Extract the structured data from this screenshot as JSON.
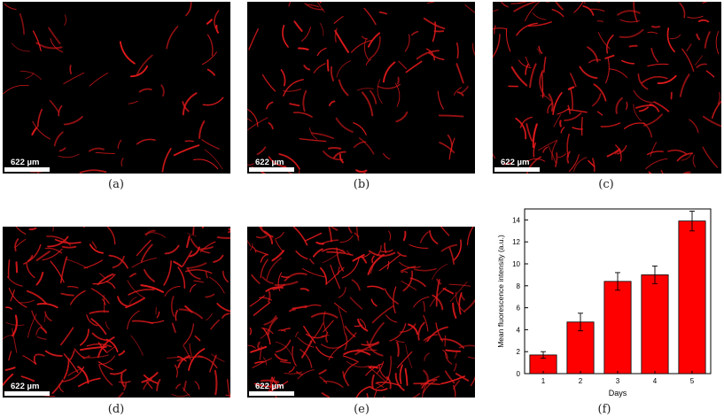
{
  "panels": [
    {
      "id": "a",
      "caption": "(a)",
      "scale_label": "622 µm",
      "fiber_density": 55
    },
    {
      "id": "b",
      "caption": "(b)",
      "scale_label": "622 µm",
      "fiber_density": 95
    },
    {
      "id": "c",
      "caption": "(c)",
      "scale_label": "622 µm",
      "fiber_density": 140
    },
    {
      "id": "d",
      "caption": "(d)",
      "scale_label": "622 µm",
      "fiber_density": 180
    },
    {
      "id": "e",
      "caption": "(e)",
      "scale_label": "622 µm",
      "fiber_density": 230
    }
  ],
  "chart_caption": "(f)",
  "colors": {
    "fiber": "#e0191b",
    "bar_fill": "#ff0000",
    "background": "#000000"
  },
  "chart_data": {
    "type": "bar",
    "categories": [
      "1",
      "2",
      "3",
      "4",
      "5"
    ],
    "values": [
      1.7,
      4.7,
      8.4,
      9.0,
      13.9
    ],
    "errors": [
      0.3,
      0.8,
      0.8,
      0.8,
      0.9
    ],
    "xlabel": "Days",
    "ylabel": "Mean fluorescence intensity (a.u.)",
    "ylim": [
      0,
      15
    ],
    "yticks": [
      0,
      2,
      4,
      6,
      8,
      10,
      12,
      14
    ],
    "grid": false
  }
}
